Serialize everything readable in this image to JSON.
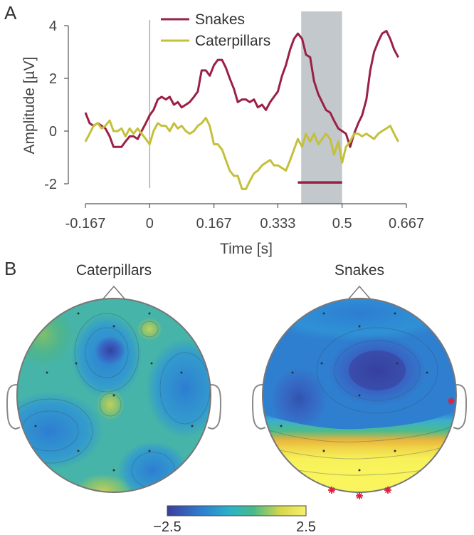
{
  "panel_a_letter": "A",
  "panel_b_letter": "B",
  "chart_data": [
    {
      "type": "line",
      "xlabel": "Time [s]",
      "ylabel": "Amplitude [µV]",
      "xlim": [
        -0.167,
        0.667
      ],
      "ylim": [
        -2.1,
        4.2
      ],
      "xticks": [
        -0.167,
        0,
        0.167,
        0.333,
        0.5,
        0.667
      ],
      "xtick_labels": [
        "-0.167",
        "0",
        "0.167",
        "0.333",
        "0.5",
        "0.667"
      ],
      "yticks": [
        -2,
        0,
        2,
        4
      ],
      "ytick_labels": [
        "-2",
        "0",
        "2",
        "4"
      ],
      "legend_position": "top",
      "shaded_window": [
        0.39,
        0.5
      ],
      "significance_bar": {
        "x": [
          0.385,
          0.5
        ],
        "y": -1.95,
        "color": "#9b2045"
      },
      "stimulus_onset": 0,
      "series": [
        {
          "name": "Snakes",
          "color": "#9b2045",
          "x": [
            -0.167,
            -0.156,
            -0.146,
            -0.135,
            -0.125,
            -0.115,
            -0.104,
            -0.094,
            -0.083,
            -0.073,
            -0.063,
            -0.052,
            -0.042,
            -0.031,
            -0.021,
            -0.01,
            0.0,
            0.01,
            0.021,
            0.031,
            0.042,
            0.052,
            0.063,
            0.073,
            0.083,
            0.094,
            0.104,
            0.115,
            0.125,
            0.135,
            0.146,
            0.156,
            0.167,
            0.177,
            0.188,
            0.198,
            0.208,
            0.219,
            0.229,
            0.24,
            0.25,
            0.26,
            0.271,
            0.281,
            0.292,
            0.302,
            0.313,
            0.323,
            0.333,
            0.344,
            0.354,
            0.365,
            0.375,
            0.385,
            0.396,
            0.406,
            0.417,
            0.427,
            0.438,
            0.448,
            0.458,
            0.469,
            0.479,
            0.49,
            0.5,
            0.51,
            0.521,
            0.531,
            0.542,
            0.552,
            0.563,
            0.573,
            0.583,
            0.594,
            0.604,
            0.615,
            0.625,
            0.635,
            0.646
          ],
          "y": [
            0.7,
            0.3,
            0.2,
            0.3,
            0.2,
            0.1,
            -0.2,
            -0.6,
            -0.6,
            -0.6,
            -0.4,
            -0.2,
            -0.2,
            -0.3,
            0.0,
            0.3,
            0.6,
            0.8,
            1.2,
            1.3,
            1.2,
            1.3,
            1.0,
            1.1,
            0.9,
            1.0,
            1.1,
            1.3,
            1.5,
            2.3,
            2.3,
            2.1,
            2.5,
            2.7,
            2.7,
            2.4,
            2.0,
            1.6,
            1.1,
            1.2,
            1.2,
            1.1,
            1.2,
            0.9,
            1.0,
            0.8,
            1.1,
            1.3,
            1.5,
            2.1,
            2.5,
            3.1,
            3.5,
            3.7,
            3.5,
            2.9,
            2.8,
            1.9,
            1.4,
            1.1,
            0.8,
            0.7,
            0.4,
            0.1,
            0.0,
            -0.1,
            -0.6,
            -0.1,
            0.3,
            0.6,
            1.2,
            2.3,
            3.0,
            3.4,
            3.7,
            3.8,
            3.5,
            3.1,
            2.8
          ],
          "note_order": "shifted"
        },
        {
          "name": "Caterpillars",
          "color": "#c3c13c",
          "x": [
            -0.167,
            -0.156,
            -0.146,
            -0.135,
            -0.125,
            -0.115,
            -0.104,
            -0.094,
            -0.083,
            -0.073,
            -0.063,
            -0.052,
            -0.042,
            -0.031,
            -0.021,
            -0.01,
            0.0,
            0.01,
            0.021,
            0.031,
            0.042,
            0.052,
            0.063,
            0.073,
            0.083,
            0.094,
            0.104,
            0.115,
            0.125,
            0.135,
            0.146,
            0.156,
            0.167,
            0.177,
            0.188,
            0.198,
            0.208,
            0.219,
            0.229,
            0.24,
            0.25,
            0.26,
            0.271,
            0.281,
            0.292,
            0.302,
            0.313,
            0.323,
            0.333,
            0.344,
            0.354,
            0.365,
            0.375,
            0.385,
            0.396,
            0.406,
            0.417,
            0.427,
            0.438,
            0.448,
            0.458,
            0.469,
            0.479,
            0.49,
            0.5,
            0.51,
            0.521,
            0.531,
            0.542,
            0.552,
            0.563,
            0.573,
            0.583,
            0.594,
            0.604,
            0.615,
            0.625,
            0.635,
            0.646
          ],
          "y": [
            -0.4,
            -0.1,
            0.2,
            0.3,
            0.1,
            0.2,
            0.4,
            0.0,
            0.0,
            0.1,
            -0.2,
            0.1,
            -0.1,
            0.1,
            -0.1,
            -0.3,
            -0.5,
            0.0,
            0.3,
            0.2,
            0.2,
            0.0,
            0.3,
            0.1,
            0.2,
            0.0,
            -0.1,
            0.0,
            0.2,
            0.3,
            0.5,
            0.2,
            -0.5,
            -0.5,
            -0.7,
            -1.1,
            -1.5,
            -1.7,
            -1.7,
            -2.2,
            -2.2,
            -1.9,
            -1.6,
            -1.5,
            -1.3,
            -1.2,
            -1.1,
            -1.3,
            -1.3,
            -1.4,
            -1.5,
            -1.1,
            -0.7,
            -0.3,
            -0.6,
            -0.1,
            -0.4,
            -0.1,
            -0.5,
            -0.3,
            -0.1,
            -0.3,
            -0.9,
            -0.4,
            -1.2,
            -0.6,
            -0.4,
            -0.1,
            -0.1,
            -0.2,
            -0.1,
            -0.2,
            -0.3,
            -0.1,
            0.0,
            0.1,
            0.2,
            -0.1,
            -0.4
          ]
        }
      ]
    },
    {
      "type": "heatmap",
      "subtype": "topographic-maps",
      "maps": [
        {
          "title": "Caterpillars",
          "markers": []
        },
        {
          "title": "Snakes",
          "markers": [
            "red-asterisk",
            "red-asterisk",
            "red-asterisk",
            "red-asterisk"
          ]
        }
      ],
      "colorbar": {
        "min_label": "−2.5",
        "max_label": "2.5",
        "range": [
          -2.5,
          2.5
        ],
        "colors": [
          "#3a3f9e",
          "#2f7fd0",
          "#2cb2c8",
          "#49b98a",
          "#d8d84a",
          "#f6f06a"
        ]
      }
    }
  ]
}
